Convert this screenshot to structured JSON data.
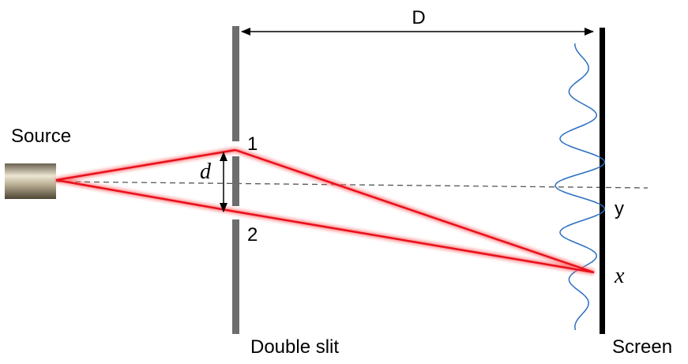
{
  "labels": {
    "source": "Source",
    "slit1": "1",
    "slit2": "2",
    "slit_separation": "d",
    "distance": "D",
    "center_axis": "y",
    "point": "x",
    "double_slit": "Double slit",
    "screen": "Screen"
  }
}
